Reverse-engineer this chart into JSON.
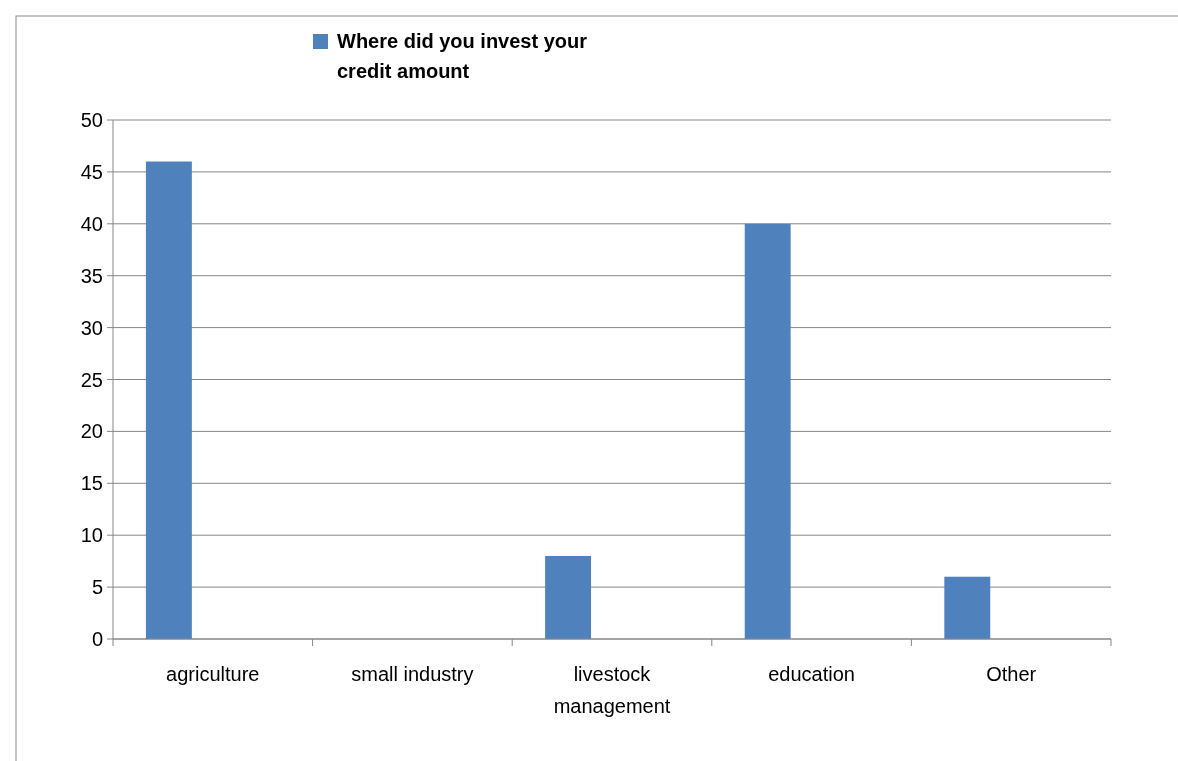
{
  "chart_data": {
    "type": "bar",
    "categories": [
      "agriculture",
      "small industry",
      "livestock management",
      "education",
      "Other"
    ],
    "series": [
      {
        "name": "Where did you invest your credit amount",
        "color": "#4f81bd",
        "values": [
          46,
          0,
          8,
          40,
          6
        ]
      }
    ],
    "ylim": [
      0,
      50
    ],
    "yticks": [
      0,
      5,
      10,
      15,
      20,
      25,
      30,
      35,
      40,
      45,
      50
    ],
    "grid": "y",
    "legend": "top"
  }
}
